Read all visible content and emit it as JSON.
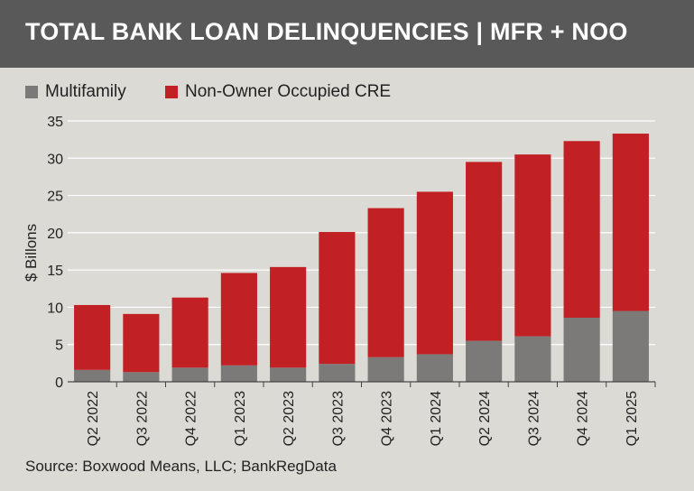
{
  "header": {
    "title": "TOTAL BANK LOAN DELINQUENCIES | MFR + NOO"
  },
  "colors": {
    "header_bg": "#5a5959",
    "background": "#dcdad4",
    "multifamily": "#7b7a78",
    "noo_cre": "#c12025"
  },
  "legend": [
    {
      "label": "Multifamily",
      "color": "#7b7a78"
    },
    {
      "label": "Non-Owner Occupied CRE",
      "color": "#c12025"
    }
  ],
  "footer": {
    "source": "Source: Boxwood Means, LLC; BankRegData"
  },
  "chart_data": {
    "type": "bar",
    "stacked": true,
    "title": "TOTAL BANK LOAN DELINQUENCIES | MFR + NOO",
    "xlabel": "",
    "ylabel": "$ Billons",
    "ylim": [
      0,
      35
    ],
    "yticks": [
      0,
      5,
      10,
      15,
      20,
      25,
      30,
      35
    ],
    "grid": true,
    "legend_position": "top-left",
    "categories": [
      "Q2 2022",
      "Q3 2022",
      "Q4 2022",
      "Q1 2023",
      "Q2 2023",
      "Q3 2023",
      "Q4 2023",
      "Q1 2024",
      "Q2 2024",
      "Q3 2024",
      "Q4 2024",
      "Q1 2025"
    ],
    "series": [
      {
        "name": "Multifamily",
        "values": [
          1.6,
          1.3,
          1.9,
          2.2,
          1.9,
          2.4,
          3.3,
          3.7,
          5.5,
          6.1,
          8.6,
          9.5
        ]
      },
      {
        "name": "Non-Owner Occupied CRE",
        "values": [
          8.7,
          7.8,
          9.4,
          12.4,
          13.5,
          17.7,
          20.0,
          21.8,
          24.0,
          24.4,
          23.7,
          23.8
        ]
      }
    ]
  }
}
